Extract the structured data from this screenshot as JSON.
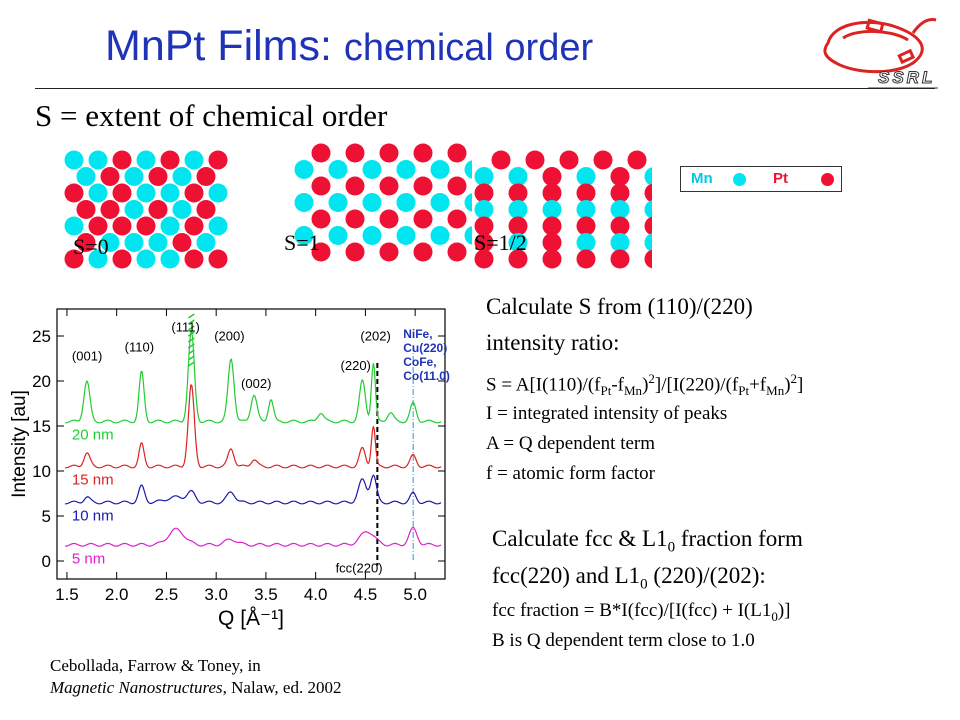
{
  "header": {
    "title_part1": "MnPt Films: ",
    "title_part2": "chemical order",
    "logo_text": "SSRL",
    "subtitle": "S = extent of chemical order"
  },
  "lattices": [
    {
      "label": "S=0",
      "grid": [
        "ccrcrcr",
        "crcrcr",
        "rcrccrc",
        "rrcrcr",
        "crrrcrc",
        "rcccrc",
        "rcrccrr"
      ]
    },
    {
      "label": "S=1",
      "grid": [
        "rrrrr",
        "cccccc",
        "rrrrr",
        "cccccc",
        "rrrrr",
        "cccccc",
        "rrrrr"
      ]
    },
    {
      "label": "S=1/2",
      "grid": [
        "rrrrr",
        "ccrcrc",
        "rrrrrr",
        "cccccc",
        "rrrrrr",
        "rcrccc",
        "rrrrrr"
      ]
    }
  ],
  "legend": {
    "mn_label": "Mn",
    "pt_label": "Pt",
    "mn_color": "#00e6f0",
    "pt_color": "#ee1133"
  },
  "chart_data": {
    "type": "line",
    "xlabel": "Q [Å⁻¹]",
    "ylabel": "Intensity [au]",
    "xlim": [
      1.4,
      5.3
    ],
    "ylim": [
      -2,
      28
    ],
    "x_ticks": [
      "1.5",
      "2.0",
      "2.5",
      "3.0",
      "3.5",
      "4.0",
      "4.5",
      "5.0"
    ],
    "y_ticks": [
      "0",
      "5",
      "10",
      "15",
      "20",
      "25"
    ],
    "series": [
      {
        "name": "20 nm",
        "color": "#22cc33",
        "baseline": 15.5,
        "peaks": [
          [
            1.7,
            4.5,
            0.03
          ],
          [
            2.25,
            5.5,
            0.025
          ],
          [
            2.75,
            10,
            0.03
          ],
          [
            3.15,
            7,
            0.03
          ],
          [
            3.38,
            3,
            0.03
          ],
          [
            3.55,
            2.5,
            0.025
          ],
          [
            4.05,
            1,
            0.03
          ],
          [
            4.47,
            4.5,
            0.03
          ],
          [
            4.58,
            6.5,
            0.02
          ],
          [
            4.75,
            1,
            0.03
          ],
          [
            4.98,
            2,
            0.03
          ]
        ]
      },
      {
        "name": "15 nm",
        "color": "#dd2222",
        "baseline": 10.5,
        "peaks": [
          [
            1.7,
            1.5,
            0.03
          ],
          [
            2.25,
            2.5,
            0.025
          ],
          [
            2.75,
            9,
            0.03
          ],
          [
            3.15,
            2,
            0.03
          ],
          [
            3.38,
            0.8,
            0.03
          ],
          [
            4.47,
            2,
            0.03
          ],
          [
            4.58,
            4.5,
            0.02
          ],
          [
            4.98,
            1.2,
            0.03
          ]
        ]
      },
      {
        "name": "10 nm",
        "color": "#1a1aaa",
        "baseline": 6.5,
        "peaks": [
          [
            1.7,
            0.6,
            0.03
          ],
          [
            2.25,
            1.8,
            0.03
          ],
          [
            2.6,
            0.6,
            0.1
          ],
          [
            2.75,
            1,
            0.04
          ],
          [
            3.15,
            1.2,
            0.04
          ],
          [
            4.47,
            2.5,
            0.04
          ],
          [
            4.58,
            3,
            0.03
          ],
          [
            4.98,
            1,
            0.03
          ]
        ]
      },
      {
        "name": "5 nm",
        "color": "#dd22cc",
        "baseline": 1.8,
        "peaks": [
          [
            2.6,
            1.7,
            0.08
          ],
          [
            3.15,
            0.6,
            0.06
          ],
          [
            4.52,
            1.5,
            0.07
          ],
          [
            4.98,
            1.8,
            0.04
          ]
        ]
      }
    ],
    "peak_labels": [
      {
        "text": "(001)",
        "x": 1.55,
        "y": 22.3
      },
      {
        "text": "(110)",
        "x": 2.08,
        "y": 23.3
      },
      {
        "text": "(111)",
        "x": 2.55,
        "y": 25.5
      },
      {
        "text": "(200)",
        "x": 2.98,
        "y": 24.5
      },
      {
        "text": "(002)",
        "x": 3.25,
        "y": 19.2
      },
      {
        "text": "(220)",
        "x": 4.25,
        "y": 21.2
      },
      {
        "text": "(202)",
        "x": 4.45,
        "y": 24.5
      }
    ],
    "substrate_labels": [
      "NiFe,",
      "Cu(220)",
      "CoFe,",
      "Co(11.0)"
    ],
    "fcc_label": "fcc(220)",
    "markers": {
      "dashed_black_x": 4.62,
      "dash_dot_cyan_x": 4.98,
      "green_hatch_x": 2.75
    }
  },
  "text_block1": {
    "line1": "Calculate S from (110)/(220)",
    "line2": "intensity ratio:",
    "formula": {
      "a": "S = A[I(110)/(f",
      "b": "Pt",
      "c": "-f",
      "d": "Mn",
      "e": ")",
      "f": "2",
      "g": "]/[I(220)/(f",
      "h": "Pt",
      "i": "+f",
      "j": "Mn",
      "k": ")",
      "l": "2",
      "m": "]"
    },
    "line4": "I = integrated intensity of peaks",
    "line5": "A = Q dependent term",
    "line6": "f = atomic form factor"
  },
  "text_block2": {
    "line1a": "Calculate fcc & L1",
    "line1sub": "0",
    "line1b": " fraction form",
    "line2a": "fcc(220) and L1",
    "line2sub": "0",
    "line2b": " (220)/(202):",
    "line3a": "fcc fraction = B*I(fcc)/[I(fcc) + I(L1",
    "line3sub": "0",
    "line3b": ")]",
    "line4": "B is Q dependent term close to 1.0"
  },
  "reference": {
    "line1": "Cebollada, Farrow & Toney, in",
    "line2_italic": "Magnetic Nanostructures",
    "line2_rest": ", Nalaw, ed. 2002"
  }
}
